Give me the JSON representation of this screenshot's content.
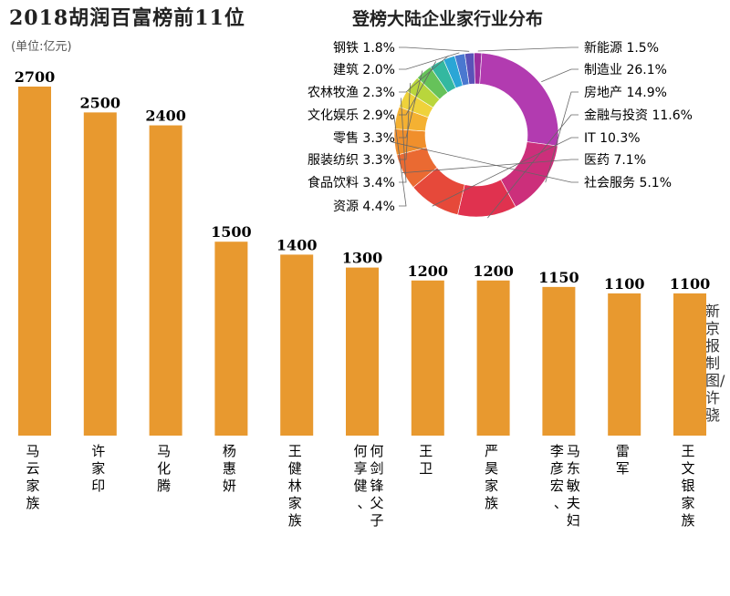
{
  "chart_data": [
    {
      "type": "bar",
      "title": "2018胡润百富榜前11位",
      "unit": "(单位:亿元)",
      "categories": [
        "马云家族",
        "许家印",
        "马化腾",
        "杨惠妍",
        "王健林家族",
        "何享健、何剑锋父子",
        "王卫",
        "严昊家族",
        "李彦宏、马东敏夫妇",
        "雷军",
        "王文银家族"
      ],
      "values": [
        2700,
        2500,
        2400,
        1500,
        1400,
        1300,
        1200,
        1200,
        1150,
        1100,
        1100
      ],
      "value_labels": [
        "2700",
        "2500",
        "2400",
        "1500",
        "1400",
        "1300",
        "1200",
        "1200",
        "1150",
        "1100",
        "1100"
      ],
      "bar_color": "#e8992f",
      "ylim": [
        0,
        2700
      ]
    },
    {
      "type": "pie",
      "title": "登榜大陆企业家行业分布",
      "donut": true,
      "slices": [
        {
          "label": "新能源",
          "pct": "1.5%",
          "value": 1.5,
          "color": "#9b2ea0"
        },
        {
          "label": "制造业",
          "pct": "26.1%",
          "value": 26.1,
          "color": "#b23bb0"
        },
        {
          "label": "房地产",
          "pct": "14.9%",
          "value": 14.9,
          "color": "#cc2f7b"
        },
        {
          "label": "金融与投资",
          "pct": "11.6%",
          "value": 11.6,
          "color": "#e0324f"
        },
        {
          "label": "IT",
          "pct": "10.3%",
          "value": 10.3,
          "color": "#e6493a"
        },
        {
          "label": "医药",
          "pct": "7.1%",
          "value": 7.1,
          "color": "#ea6a32"
        },
        {
          "label": "社会服务",
          "pct": "5.1%",
          "value": 5.1,
          "color": "#f08f2c"
        },
        {
          "label": "资源",
          "pct": "4.4%",
          "value": 4.4,
          "color": "#f4b132"
        },
        {
          "label": "食品饮料",
          "pct": "3.4%",
          "value": 3.4,
          "color": "#efd23b"
        },
        {
          "label": "服装纺织",
          "pct": "3.3%",
          "value": 3.3,
          "color": "#b9d63c"
        },
        {
          "label": "零售",
          "pct": "3.3%",
          "value": 3.3,
          "color": "#66c25a"
        },
        {
          "label": "文化娱乐",
          "pct": "2.9%",
          "value": 2.9,
          "color": "#33b8a0"
        },
        {
          "label": "农林牧渔",
          "pct": "2.3%",
          "value": 2.3,
          "color": "#2aa6d6"
        },
        {
          "label": "建筑",
          "pct": "2.0%",
          "value": 2.0,
          "color": "#4a78d0"
        },
        {
          "label": "钢铁",
          "pct": "1.8%",
          "value": 1.8,
          "color": "#5a52b8"
        }
      ]
    }
  ],
  "credit": "新京报制图/许骁"
}
